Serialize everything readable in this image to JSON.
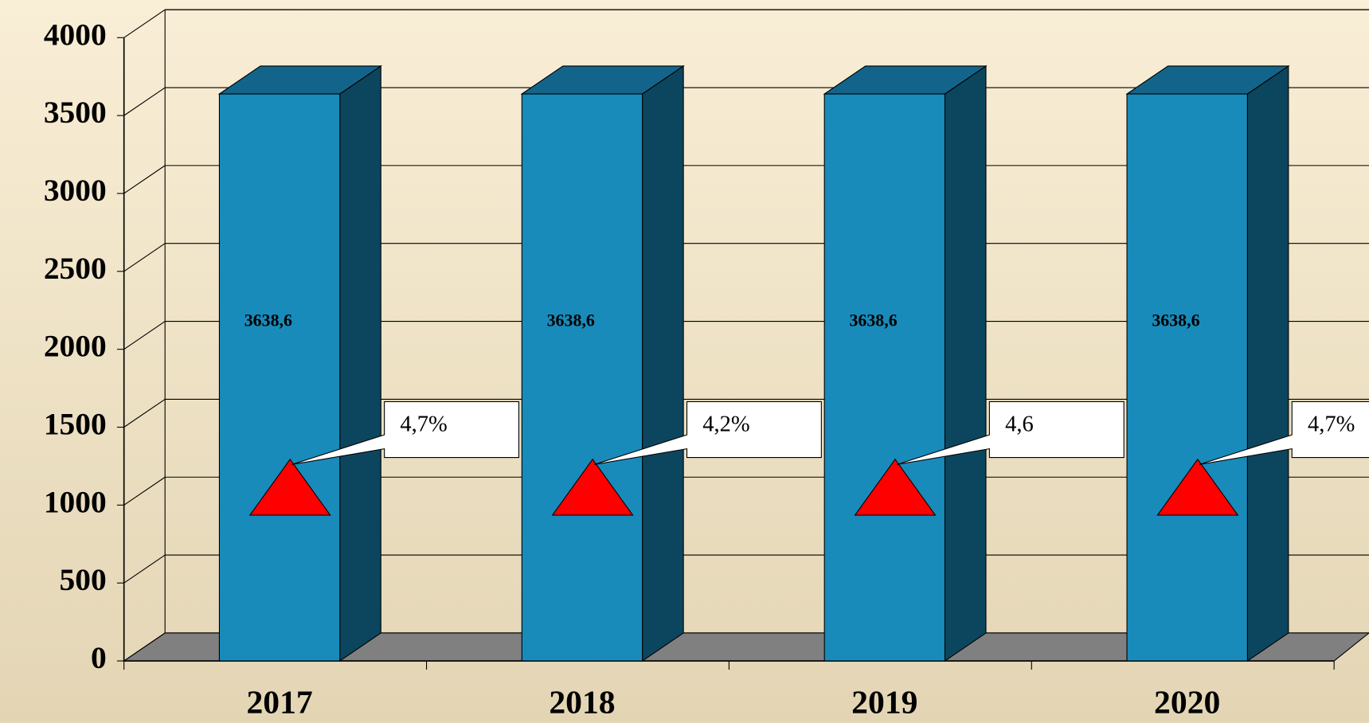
{
  "chart_data": {
    "type": "bar3d",
    "categories": [
      "2017",
      "2018",
      "2019",
      "2020"
    ],
    "values": [
      3638.6,
      3638.6,
      3638.6,
      3638.6
    ],
    "value_labels": [
      "3638,6",
      "3638,6",
      "3638,6",
      "3638,6"
    ],
    "annotations": [
      "4,7%",
      "4,2%",
      "4,6",
      "4,7%"
    ],
    "color": "#188bbb",
    "ylim": [
      0,
      4000
    ],
    "yticks": [
      0,
      500,
      1000,
      1500,
      2000,
      2500,
      3000,
      3500,
      4000
    ],
    "grid": true
  }
}
